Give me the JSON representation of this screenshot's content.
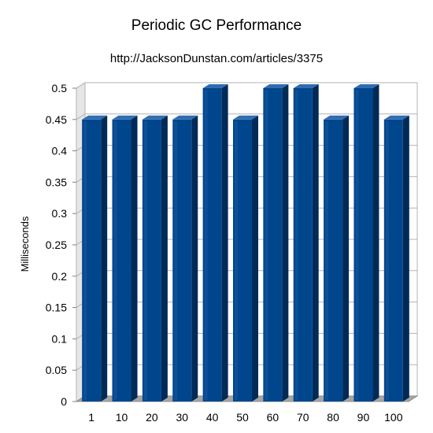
{
  "chart_data": {
    "type": "bar",
    "title": "Periodic GC Performance",
    "subtitle": "http://JacksonDunstan.com/articles/3375",
    "xlabel": "",
    "ylabel": "Milliseconds",
    "categories": [
      "1",
      "10",
      "20",
      "30",
      "40",
      "50",
      "60",
      "70",
      "80",
      "90",
      "100"
    ],
    "values": [
      0.45,
      0.45,
      0.45,
      0.45,
      0.5,
      0.45,
      0.5,
      0.5,
      0.45,
      0.5,
      0.45
    ],
    "ylim": [
      0,
      0.5
    ],
    "yticks": [
      "0",
      "0.05",
      "0.1",
      "0.15",
      "0.2",
      "0.25",
      "0.3",
      "0.35",
      "0.4",
      "0.45",
      "0.5"
    ],
    "grid": true,
    "legend": "none",
    "style": "3d",
    "colors": {
      "bar_front": "#00468c",
      "bar_side": "#002a57",
      "bar_top": "#2f6db0",
      "grid": "#b3b3b3",
      "floor": "#a6a6a6"
    }
  }
}
